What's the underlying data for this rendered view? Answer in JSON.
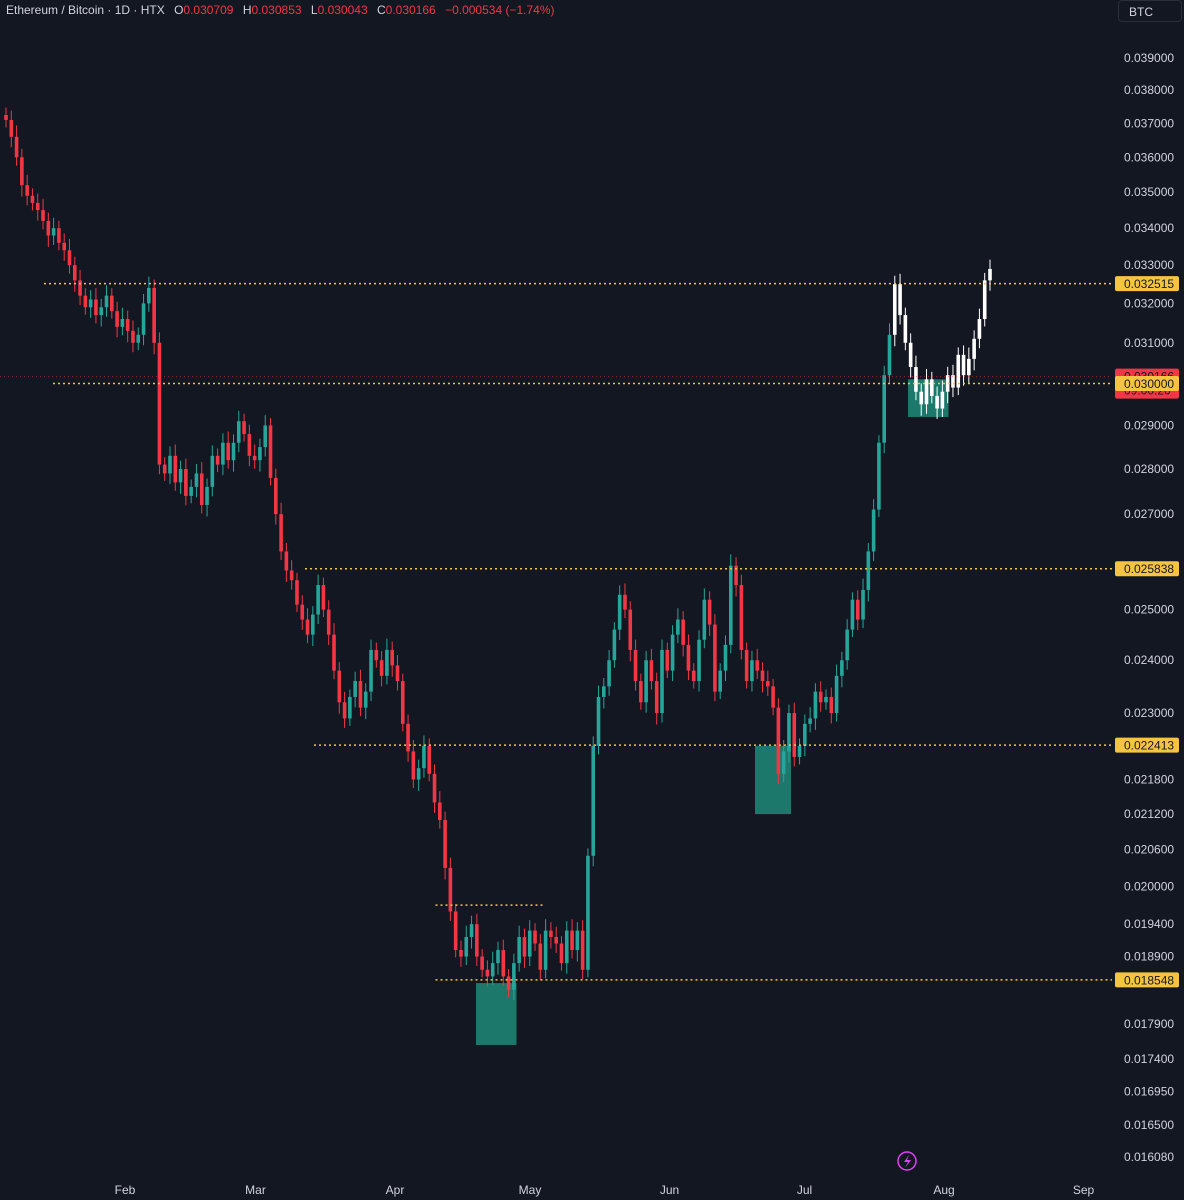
{
  "legend": {
    "symbol": "Ethereum / Bitcoin · 1D · HTX",
    "o_label": "O",
    "o_value": "0.030709",
    "h_label": "H",
    "h_value": "0.030853",
    "l_label": "L",
    "l_value": "0.030043",
    "c_label": "C",
    "c_value": "0.030166",
    "change": "−0.000534 (−1.74%)"
  },
  "currency_button": "BTC",
  "colors": {
    "background": "#131722",
    "up": "#26a69a",
    "down": "#f23645",
    "forecast": "#ffffff",
    "level_line": "#f5c542",
    "zone": "#1e8a78"
  },
  "chart_data": {
    "type": "candlestick",
    "symbol": "Ethereum / Bitcoin",
    "interval": "1D",
    "exchange": "HTX",
    "y_scale": "log",
    "y_ticks": [
      "0.039000",
      "0.038000",
      "0.037000",
      "0.036000",
      "0.035000",
      "0.034000",
      "0.033000",
      "0.032000",
      "0.031000",
      "0.029000",
      "0.028000",
      "0.027000",
      "0.025000",
      "0.024000",
      "0.023000",
      "0.021800",
      "0.021200",
      "0.020600",
      "0.020000",
      "0.019400",
      "0.018900",
      "0.017900",
      "0.017400",
      "0.016950",
      "0.016500",
      "0.016080"
    ],
    "x_labels": [
      "Feb",
      "Mar",
      "Apr",
      "May",
      "Jun",
      "Jul",
      "Aug",
      "Sep"
    ],
    "levels": [
      {
        "value": "0.032515",
        "start": "Jan 14"
      },
      {
        "value": "0.030000",
        "start": "Jan 16"
      },
      {
        "value": "0.025838",
        "start": "Mar 12"
      },
      {
        "value": "0.022413",
        "start": "Mar 14"
      },
      {
        "value": "0.018548",
        "start": "Apr 10"
      }
    ],
    "range_line": {
      "value": 0.0197,
      "start": "Apr 10",
      "end": "May 4"
    },
    "price_tags": [
      {
        "label": "0.032515",
        "value": 0.032515,
        "color": "#f5c542"
      },
      {
        "label": "0.030166",
        "sub": "09:00:20",
        "value": 0.030166,
        "color": "#f23645"
      },
      {
        "label": "0.030000",
        "value": 0.03,
        "color": "#f5c542"
      },
      {
        "label": "0.025838",
        "value": 0.025838,
        "color": "#f5c542"
      },
      {
        "label": "0.022413",
        "value": 0.022413,
        "color": "#f5c542"
      },
      {
        "label": "0.018548",
        "value": 0.018548,
        "color": "#f5c542"
      }
    ],
    "zones": [
      {
        "start": "Apr 19",
        "end": "Apr 28",
        "low": 0.0176,
        "high": 0.0185
      },
      {
        "start": "Jun 20",
        "end": "Jun 28",
        "low": 0.0212,
        "high": 0.0224
      },
      {
        "start": "Jul 24",
        "end": "Aug 2",
        "low": 0.0292,
        "high": 0.0301
      }
    ],
    "candles_close": [
      0.0371,
      0.0366,
      0.036,
      0.0352,
      0.0349,
      0.0347,
      0.0345,
      0.0342,
      0.0338,
      0.034,
      0.0336,
      0.0334,
      0.033,
      0.0326,
      0.0322,
      0.0319,
      0.0321,
      0.0317,
      0.0319,
      0.0322,
      0.0318,
      0.0314,
      0.0316,
      0.0313,
      0.031,
      0.0312,
      0.032,
      0.0324,
      0.031,
      0.0281,
      0.0279,
      0.0283,
      0.0277,
      0.028,
      0.0274,
      0.0276,
      0.0279,
      0.0272,
      0.0276,
      0.0283,
      0.0281,
      0.0286,
      0.0282,
      0.0286,
      0.0291,
      0.0288,
      0.0283,
      0.0282,
      0.0285,
      0.029,
      0.0278,
      0.027,
      0.0262,
      0.0258,
      0.0256,
      0.0251,
      0.0248,
      0.0245,
      0.0249,
      0.0255,
      0.025,
      0.0245,
      0.0238,
      0.0232,
      0.0229,
      0.0233,
      0.0236,
      0.0231,
      0.0234,
      0.0242,
      0.024,
      0.0237,
      0.0242,
      0.0239,
      0.0236,
      0.0228,
      0.0223,
      0.0218,
      0.022,
      0.0224,
      0.0219,
      0.0214,
      0.0211,
      0.0203,
      0.0196,
      0.019,
      0.0189,
      0.0192,
      0.0194,
      0.0189,
      0.0187,
      0.0186,
      0.0188,
      0.019,
      0.0186,
      0.0184,
      0.0188,
      0.0192,
      0.0189,
      0.0193,
      0.0191,
      0.0187,
      0.0193,
      0.0192,
      0.0191,
      0.0188,
      0.0193,
      0.019,
      0.0193,
      0.0187,
      0.0205,
      0.0224,
      0.0233,
      0.0235,
      0.024,
      0.0246,
      0.0253,
      0.025,
      0.0242,
      0.0236,
      0.0232,
      0.024,
      0.0236,
      0.023,
      0.0242,
      0.0238,
      0.0245,
      0.0248,
      0.0243,
      0.0238,
      0.0236,
      0.0244,
      0.0252,
      0.0247,
      0.0234,
      0.0238,
      0.0243,
      0.0259,
      0.0255,
      0.0242,
      0.0236,
      0.024,
      0.0238,
      0.0236,
      0.0235,
      0.0231,
      0.0219,
      0.0223,
      0.023,
      0.0222,
      0.0224,
      0.0228,
      0.0229,
      0.0234,
      0.0232,
      0.0233,
      0.023,
      0.0237,
      0.024,
      0.0246,
      0.0252,
      0.0248,
      0.0254,
      0.0262,
      0.0271,
      0.0286,
      0.0302,
      0.0312,
      0.0325,
      0.0317,
      0.031,
      0.0304,
      0.0298,
      0.0295,
      0.0301,
      0.0297,
      0.0294,
      0.0298,
      0.0302,
      0.0299,
      0.0307,
      0.0302,
      0.0306,
      0.0311,
      0.0316,
      0.0326,
      0.0329
    ],
    "forecast_from_index": 168
  }
}
